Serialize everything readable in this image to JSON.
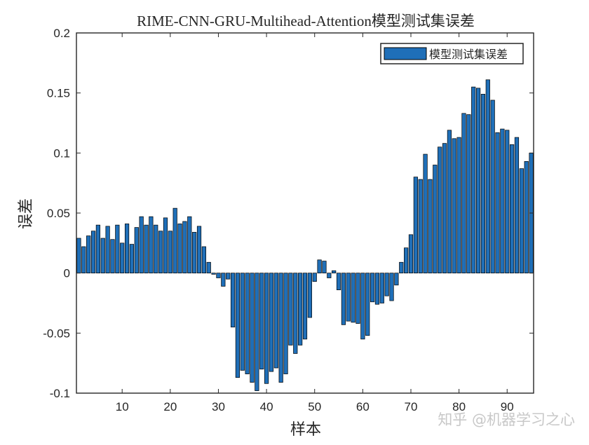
{
  "chart_data": {
    "type": "bar",
    "title": "RIME-CNN-GRU-Multihead-Attention模型测试集误差",
    "xlabel": "样本",
    "ylabel": "误差",
    "xlim": [
      0.5,
      95.5
    ],
    "ylim": [
      -0.1,
      0.2
    ],
    "xticks": [
      10,
      20,
      30,
      40,
      50,
      60,
      70,
      80,
      90
    ],
    "yticks": [
      -0.1,
      -0.05,
      0,
      0.05,
      0.1,
      0.15,
      0.2
    ],
    "ytick_labels": [
      "-0.1",
      "-0.05",
      "0",
      "0.05",
      "0.1",
      "0.15",
      "0.2"
    ],
    "grid": false,
    "legend_position": "top-right",
    "series": [
      {
        "name": "模型测试集误差",
        "color": "#1f6fb8",
        "values": [
          0.029,
          0.022,
          0.031,
          0.035,
          0.04,
          0.029,
          0.039,
          0.028,
          0.04,
          0.025,
          0.041,
          0.024,
          0.038,
          0.047,
          0.04,
          0.047,
          0.04,
          0.035,
          0.046,
          0.035,
          0.054,
          0.041,
          0.043,
          0.047,
          0.034,
          0.039,
          0.022,
          0.009,
          -0.001,
          -0.004,
          -0.011,
          -0.005,
          -0.045,
          -0.087,
          -0.081,
          -0.084,
          -0.091,
          -0.098,
          -0.08,
          -0.092,
          -0.082,
          -0.079,
          -0.091,
          -0.084,
          -0.06,
          -0.067,
          -0.06,
          -0.055,
          -0.037,
          -0.007,
          0.011,
          0.01,
          -0.004,
          0.002,
          -0.014,
          -0.043,
          -0.04,
          -0.041,
          -0.042,
          -0.055,
          -0.052,
          -0.024,
          -0.026,
          -0.025,
          -0.019,
          -0.023,
          -0.01,
          0.009,
          0.021,
          0.032,
          0.08,
          0.078,
          0.099,
          0.078,
          0.09,
          0.105,
          0.108,
          0.119,
          0.112,
          0.113,
          0.133,
          0.132,
          0.155,
          0.154,
          0.149,
          0.161,
          0.144,
          0.117,
          0.12,
          0.119,
          0.107,
          0.113,
          0.087,
          0.093,
          0.1
        ]
      }
    ]
  },
  "watermark": {
    "text": "知乎 @机器学习之心",
    "color": "#c8c8c8"
  }
}
